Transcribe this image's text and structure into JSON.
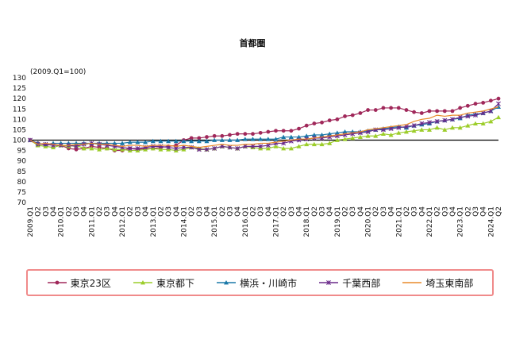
{
  "chart_data": {
    "type": "line",
    "title": "首都圏",
    "unit_label": "(2009.Q1=100)",
    "ylim": [
      70,
      130
    ],
    "ytick_step": 5,
    "grid": false,
    "baseline": 100,
    "legend_position": "bottom",
    "x": [
      "2009.Q1",
      "Q2",
      "Q3",
      "Q4",
      "2010.Q1",
      "Q2",
      "Q3",
      "Q4",
      "2011.Q1",
      "Q2",
      "Q3",
      "Q4",
      "2012.Q1",
      "Q2",
      "Q3",
      "Q4",
      "2013.Q1",
      "Q2",
      "Q3",
      "Q4",
      "2014.Q1",
      "Q2",
      "Q3",
      "Q4",
      "2015.Q1",
      "Q2",
      "Q3",
      "Q4",
      "2016.Q1",
      "Q2",
      "Q3",
      "Q4",
      "2017.Q1",
      "Q2",
      "Q3",
      "Q4",
      "2018.Q1",
      "Q2",
      "Q3",
      "Q4",
      "2019.Q1",
      "Q2",
      "Q3",
      "Q4",
      "2020.Q1",
      "Q2",
      "Q3",
      "Q4",
      "2021.Q1",
      "Q2",
      "Q3",
      "Q4",
      "2022.Q1",
      "Q2",
      "Q3",
      "Q4",
      "2023.Q1",
      "Q2",
      "Q3",
      "Q4",
      "2024.Q1",
      "Q2"
    ],
    "series": [
      {
        "name": "東京23区",
        "color": "#a0285a",
        "marker": "circle",
        "values": [
          100,
          98.5,
          97.5,
          98,
          97.5,
          96,
          95.5,
          96,
          97,
          96.5,
          96,
          95,
          95,
          96,
          95.5,
          96,
          96,
          96.5,
          97,
          97.5,
          100,
          101,
          101,
          101.5,
          102,
          102,
          102.5,
          103,
          103,
          103,
          103.5,
          104,
          104.5,
          104.5,
          104.5,
          105.5,
          107,
          108,
          108.5,
          109.5,
          110,
          111.5,
          112,
          113,
          114.5,
          114.5,
          115.5,
          115.5,
          115.5,
          114.5,
          113.5,
          113,
          114,
          114,
          114,
          114,
          115.5,
          116.5,
          117.5,
          118,
          119,
          120
        ]
      },
      {
        "name": "東京都下",
        "color": "#9ccd2a",
        "marker": "triangle",
        "values": [
          100,
          97.5,
          97,
          96.5,
          97.5,
          97,
          97.5,
          96,
          96,
          95.5,
          96,
          95.5,
          95.5,
          95,
          95,
          95.5,
          96,
          95.5,
          95.5,
          95,
          95.5,
          96.5,
          96,
          95.5,
          96,
          97,
          96.5,
          96,
          97,
          96.5,
          96,
          96,
          97,
          96,
          96,
          97,
          98,
          98,
          98,
          98.5,
          100,
          100.5,
          101,
          101.5,
          102,
          102,
          103,
          102.5,
          103.5,
          104,
          104.5,
          105,
          105,
          106,
          105,
          106,
          106,
          107,
          108,
          108,
          109,
          111
        ]
      },
      {
        "name": "横浜・川崎市",
        "color": "#1a78a8",
        "marker": "triangle",
        "values": [
          100,
          98.5,
          98,
          98.5,
          98.5,
          98.5,
          98.5,
          98.5,
          98.5,
          98.5,
          98.5,
          98.5,
          98.5,
          99,
          99,
          99,
          99.5,
          99.5,
          99.5,
          99.5,
          99.5,
          99.5,
          99.5,
          99.5,
          100,
          100,
          100,
          100,
          100.5,
          100.5,
          100.5,
          100.5,
          100.5,
          101.5,
          101.5,
          101.5,
          102,
          102.5,
          102.5,
          103,
          103.5,
          104,
          104,
          104,
          104.5,
          105,
          105.5,
          106,
          106.5,
          106,
          107,
          107.5,
          108,
          109,
          109.5,
          110,
          110.5,
          112,
          112.5,
          113,
          114,
          116
        ]
      },
      {
        "name": "千葉西部",
        "color": "#6a2a8a",
        "marker": "star",
        "values": [
          100,
          98,
          98,
          97.5,
          97.5,
          97.5,
          97,
          98,
          98.5,
          98,
          97.5,
          97,
          96.5,
          96,
          96,
          96.5,
          97,
          97,
          96.5,
          96,
          96.5,
          96.5,
          95.5,
          95.5,
          96,
          97,
          96.5,
          96,
          97,
          97,
          97,
          97.5,
          98.5,
          98.5,
          99.5,
          100,
          100.5,
          101,
          101,
          101.5,
          102,
          102.5,
          103,
          103.5,
          104,
          105,
          105,
          105.5,
          106,
          106.5,
          107,
          108,
          108.5,
          109,
          109.5,
          110,
          111,
          111.5,
          112,
          113,
          114,
          117.5
        ]
      },
      {
        "name": "埼玉東南部",
        "color": "#e88a2a",
        "marker": "none",
        "values": [
          100,
          98,
          98.5,
          98,
          97.5,
          97.5,
          98,
          98,
          98.5,
          98,
          98,
          97.5,
          97,
          97.5,
          97.5,
          97,
          97.5,
          97.5,
          97.5,
          97,
          97.5,
          97,
          96.5,
          97,
          97.5,
          98,
          97.5,
          97.5,
          98,
          98,
          98.5,
          98.5,
          99,
          99.5,
          100,
          100.5,
          100.5,
          101,
          101.5,
          102,
          102.5,
          103,
          103.5,
          104,
          105,
          105.5,
          106,
          106.5,
          107,
          107.5,
          109,
          110,
          110.5,
          112,
          111.5,
          112,
          112,
          113,
          113.5,
          114,
          115,
          116
        ]
      }
    ]
  }
}
